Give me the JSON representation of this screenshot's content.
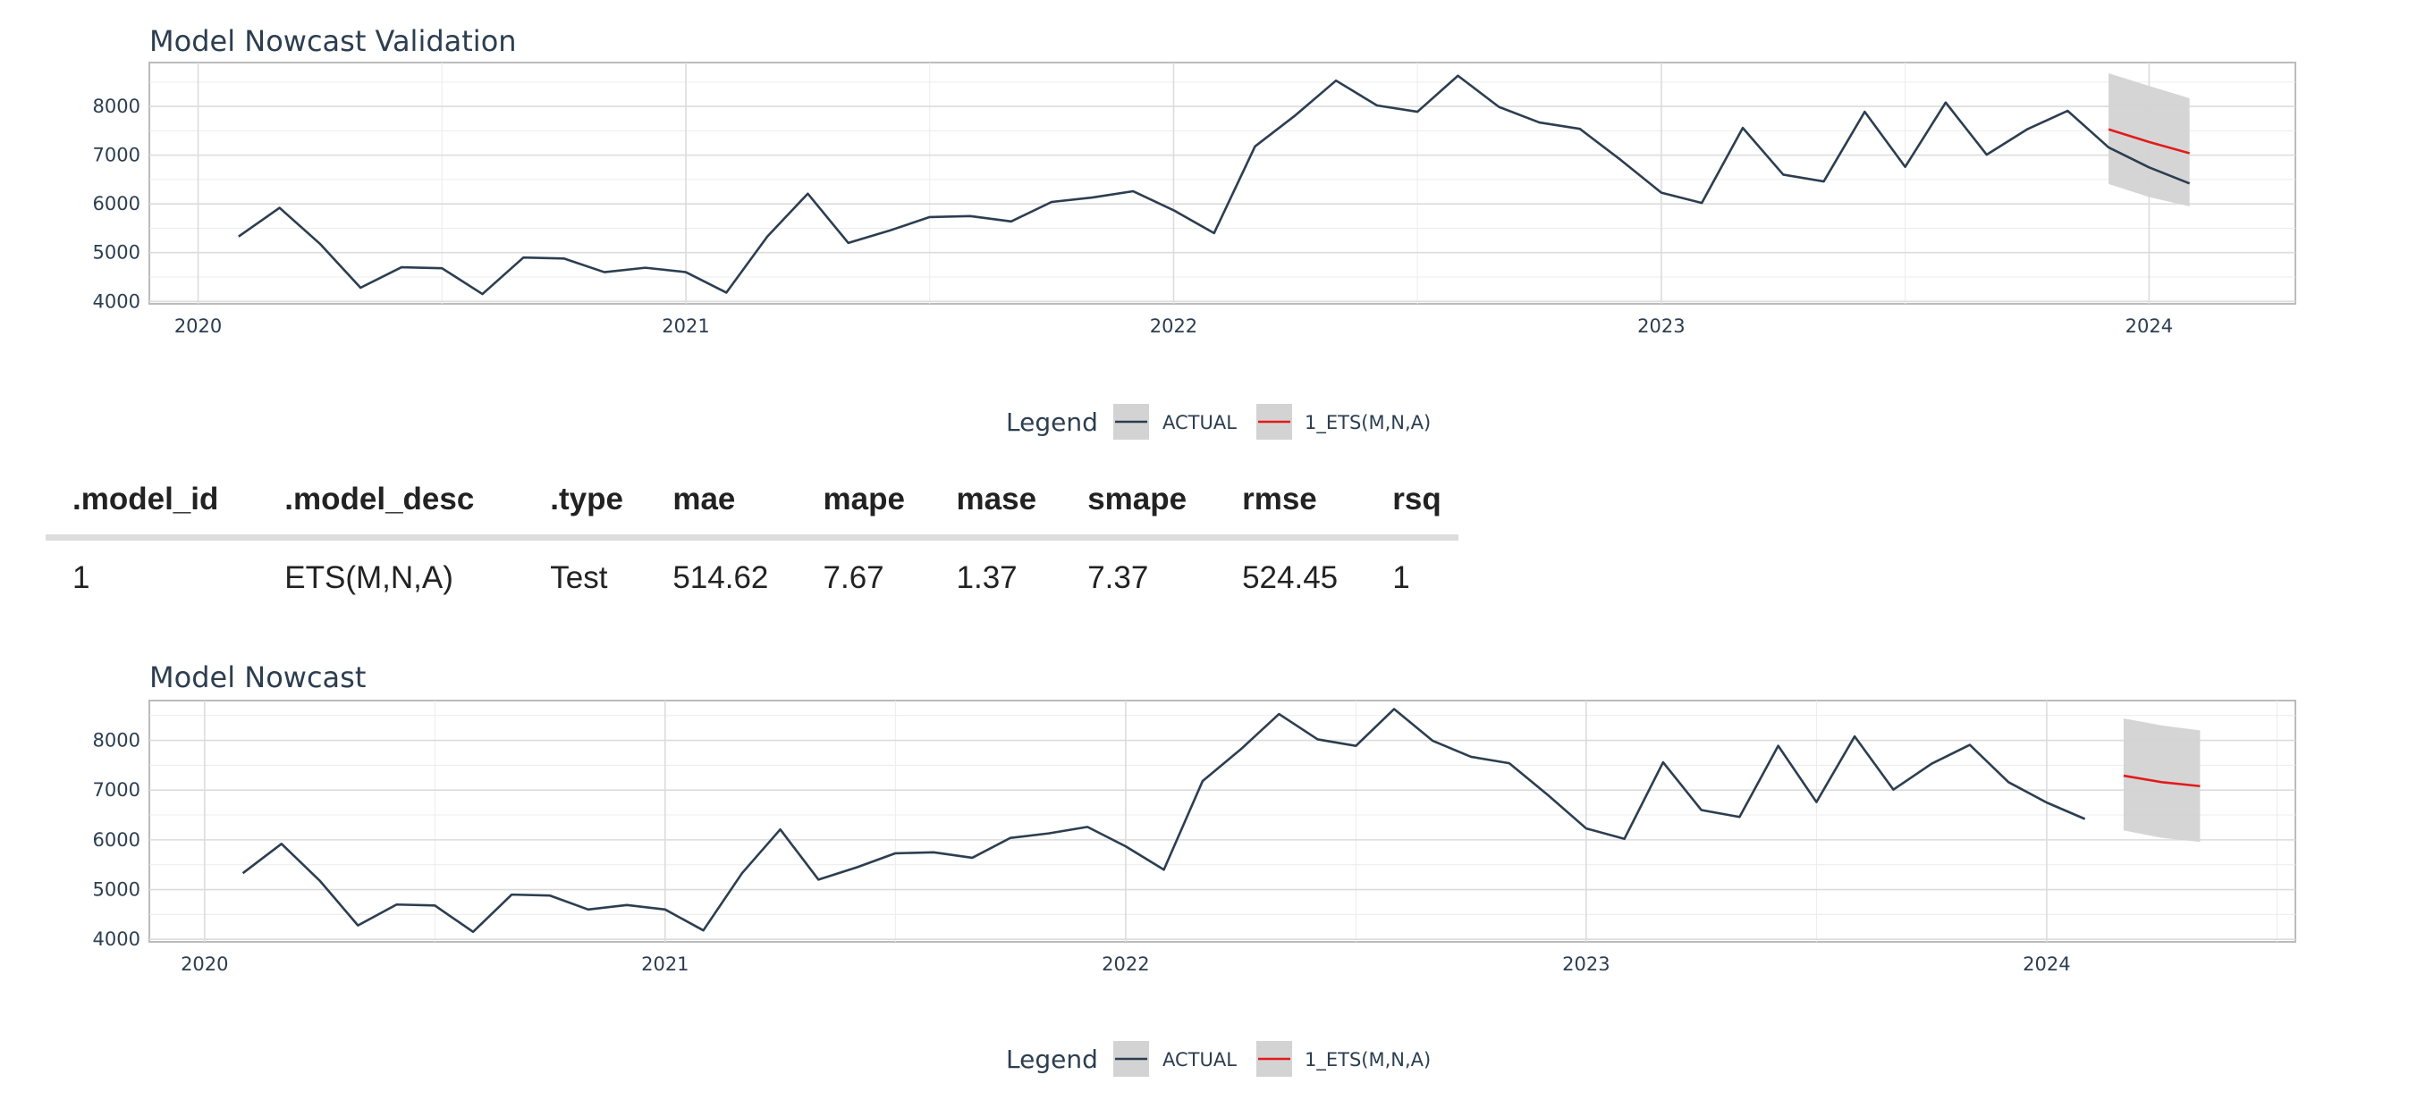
{
  "legend": {
    "title": "Legend",
    "items": [
      {
        "label": "ACTUAL",
        "color": "#2c3e50"
      },
      {
        "label": "1_ETS(M,N,A)",
        "color": "#e31a1c"
      }
    ],
    "position": "bottom"
  },
  "colors": {
    "actual": "#2c3e50",
    "forecast": "#e31a1c",
    "interval": "#d3d3d3",
    "grid": "#dcdcdc",
    "panel_border": "#bbbbbb"
  },
  "table": {
    "columns": [
      ".model_id",
      ".model_desc",
      ".type",
      "mae",
      "mape",
      "mase",
      "smape",
      "rmse",
      "rsq"
    ],
    "rows": [
      [
        "1",
        "ETS(M,N,A)",
        "Test",
        "514.62",
        "7.67",
        "1.37",
        "7.37",
        "524.45",
        "1"
      ]
    ]
  },
  "chart_data": [
    {
      "type": "line",
      "title": "Model Nowcast Validation",
      "xlabel": "",
      "ylabel": "",
      "x_ticks": [
        "2020",
        "2021",
        "2022",
        "2023",
        "2024"
      ],
      "y_ticks": [
        4000,
        5000,
        6000,
        7000,
        8000
      ],
      "xlim": [
        2019.9,
        2024.3
      ],
      "ylim": [
        3950,
        8900
      ],
      "grid": true,
      "series": [
        {
          "name": "ACTUAL",
          "x": [
            2020.083,
            2020.167,
            2020.25,
            2020.333,
            2020.417,
            2020.5,
            2020.583,
            2020.667,
            2020.75,
            2020.833,
            2020.917,
            2021.0,
            2021.083,
            2021.167,
            2021.25,
            2021.333,
            2021.417,
            2021.5,
            2021.583,
            2021.667,
            2021.75,
            2021.833,
            2021.917,
            2022.0,
            2022.083,
            2022.167,
            2022.25,
            2022.333,
            2022.417,
            2022.5,
            2022.583,
            2022.667,
            2022.75,
            2022.833,
            2022.917,
            2023.0,
            2023.083,
            2023.167,
            2023.25,
            2023.333,
            2023.417,
            2023.5,
            2023.583,
            2023.667,
            2023.75,
            2023.833,
            2023.917,
            2024.0,
            2024.083
          ],
          "values": [
            5330,
            5920,
            5180,
            4280,
            4700,
            4680,
            4150,
            4900,
            4880,
            4600,
            4690,
            4600,
            4180,
            5330,
            6210,
            5200,
            5450,
            5730,
            5750,
            5640,
            6040,
            6130,
            6260,
            5870,
            5400,
            7180,
            7820,
            8530,
            8020,
            7890,
            8630,
            7990,
            7670,
            7540,
            6900,
            6230,
            6020,
            7560,
            6600,
            6460,
            7890,
            6760,
            8080,
            7010,
            7530,
            7910,
            7160,
            6750,
            6420
          ]
        },
        {
          "name": "1_ETS(M,N,A)",
          "x": [
            2023.917,
            2024.0,
            2024.083
          ],
          "values": [
            7530,
            7270,
            7040
          ],
          "conf_hi": [
            8680,
            8420,
            8170
          ],
          "conf_lo": [
            6410,
            6140,
            5950
          ]
        }
      ]
    },
    {
      "type": "line",
      "title": "Model Nowcast",
      "xlabel": "",
      "ylabel": "",
      "x_ticks": [
        "2020",
        "2021",
        "2022",
        "2023",
        "2024"
      ],
      "y_ticks": [
        4000,
        5000,
        6000,
        7000,
        8000
      ],
      "xlim": [
        2019.88,
        2024.54
      ],
      "ylim": [
        3950,
        8800
      ],
      "grid": true,
      "series": [
        {
          "name": "ACTUAL",
          "x": [
            2020.083,
            2020.167,
            2020.25,
            2020.333,
            2020.417,
            2020.5,
            2020.583,
            2020.667,
            2020.75,
            2020.833,
            2020.917,
            2021.0,
            2021.083,
            2021.167,
            2021.25,
            2021.333,
            2021.417,
            2021.5,
            2021.583,
            2021.667,
            2021.75,
            2021.833,
            2021.917,
            2022.0,
            2022.083,
            2022.167,
            2022.25,
            2022.333,
            2022.417,
            2022.5,
            2022.583,
            2022.667,
            2022.75,
            2022.833,
            2022.917,
            2023.0,
            2023.083,
            2023.167,
            2023.25,
            2023.333,
            2023.417,
            2023.5,
            2023.583,
            2023.667,
            2023.75,
            2023.833,
            2023.917,
            2024.0,
            2024.083
          ],
          "values": [
            5330,
            5920,
            5180,
            4280,
            4700,
            4680,
            4150,
            4900,
            4880,
            4600,
            4690,
            4600,
            4180,
            5330,
            6210,
            5200,
            5450,
            5730,
            5750,
            5640,
            6040,
            6130,
            6260,
            5870,
            5400,
            7180,
            7820,
            8530,
            8020,
            7890,
            8630,
            7990,
            7670,
            7540,
            6900,
            6230,
            6020,
            7560,
            6600,
            6460,
            7890,
            6760,
            8080,
            7010,
            7530,
            7910,
            7160,
            6750,
            6420
          ]
        },
        {
          "name": "1_ETS(M,N,A)",
          "x": [
            2024.167,
            2024.25,
            2024.333
          ],
          "values": [
            7290,
            7160,
            7080
          ],
          "conf_hi": [
            8440,
            8300,
            8200
          ],
          "conf_lo": [
            6190,
            6040,
            5960
          ]
        }
      ]
    }
  ]
}
